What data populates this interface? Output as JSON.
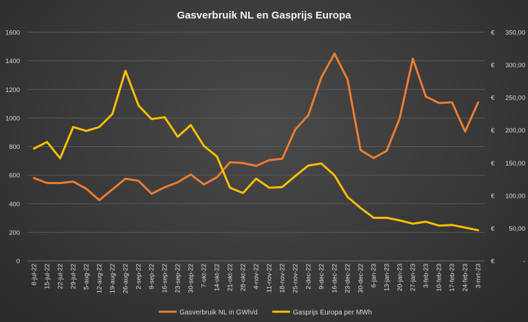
{
  "chart_data": {
    "type": "line",
    "title": "Gasverbruik NL en Gasprijs Europa",
    "categories": [
      "8-jul-22",
      "15-jul-22",
      "22-jul-22",
      "29-jul-22",
      "5-aug-22",
      "12-aug-22",
      "19-aug-22",
      "26-aug-22",
      "2-sep-22",
      "9-sep-22",
      "16-sep-22",
      "23-sep-22",
      "30-sep-22",
      "7-okt-22",
      "14-okt-22",
      "21-okt-22",
      "28-okt-22",
      "4-nov-22",
      "11-nov-22",
      "18-nov-22",
      "25-nov-22",
      "2-dec-22",
      "9-dec-22",
      "16-dec-22",
      "23-dec-22",
      "30-dec-22",
      "6-jan-23",
      "13-jan-23",
      "20-jan-23",
      "27-jan-23",
      "3-feb-23",
      "10-feb-23",
      "17-feb-23",
      "24-feb-23",
      "3-mrt-23"
    ],
    "series": [
      {
        "name": "Gasverbruik NL in GWh/d",
        "axis": "left",
        "color": "#ed7d31",
        "values": [
          580,
          545,
          545,
          555,
          505,
          425,
          500,
          575,
          560,
          470,
          515,
          550,
          605,
          535,
          585,
          690,
          685,
          665,
          705,
          715,
          920,
          1020,
          1285,
          1450,
          1270,
          775,
          720,
          770,
          1000,
          1415,
          1150,
          1105,
          1110,
          905,
          1110
        ]
      },
      {
        "name": "Gasprijs Europa per MWh",
        "axis": "right",
        "color": "#ffc000",
        "values": [
          172,
          182,
          157,
          205,
          199,
          205,
          225,
          291,
          238,
          217,
          220,
          190,
          208,
          176,
          160,
          112,
          104,
          126,
          112,
          113,
          130,
          146,
          149,
          131,
          98,
          81,
          66,
          66,
          62,
          57,
          60,
          54,
          55,
          51,
          47
        ]
      }
    ],
    "yleft": {
      "min": 0,
      "max": 1600,
      "step": 200,
      "ticks": [
        "0",
        "200",
        "400",
        "600",
        "800",
        "1000",
        "1200",
        "1400",
        "1600"
      ]
    },
    "yright": {
      "min": 0,
      "max": 350,
      "step": 50,
      "ticks": [
        "€ -",
        "€ 50,00",
        "€ 100,00",
        "€ 150,00",
        "€ 200,00",
        "€ 250,00",
        "€ 300,00",
        "€ 350,00"
      ]
    },
    "legend_position": "bottom",
    "grid": true
  }
}
